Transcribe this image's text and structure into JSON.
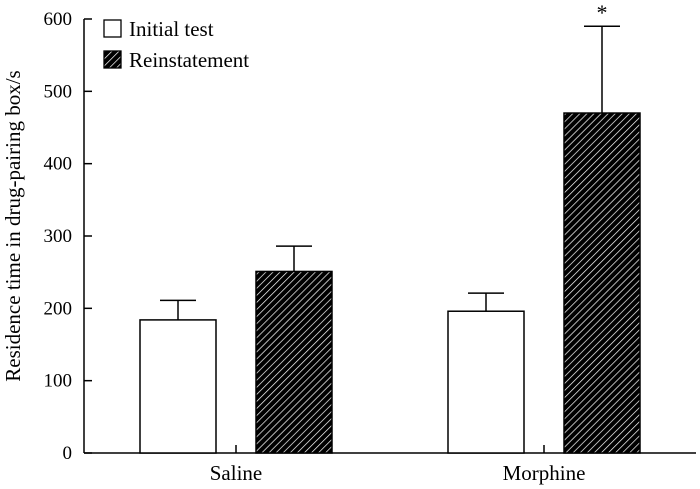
{
  "chart_data": {
    "type": "bar",
    "categories": [
      "Saline",
      "Morphine"
    ],
    "series": [
      {
        "name": "Initial test",
        "values": [
          184,
          196
        ],
        "errors": [
          27,
          25
        ],
        "fill": "none"
      },
      {
        "name": "Reinstatement",
        "values": [
          251,
          470
        ],
        "errors": [
          35,
          120
        ],
        "fill": "hatched"
      }
    ],
    "annotations": [
      {
        "category": "Morphine",
        "series": "Reinstatement",
        "text": "*"
      }
    ],
    "xlabel": "",
    "ylabel": "Residence time in drug-pairing box/s",
    "ylim": [
      0,
      600
    ],
    "yticks": [
      0,
      100,
      200,
      300,
      400,
      500,
      600
    ],
    "grid": false,
    "legend_position": "top-left"
  },
  "colors": {
    "axis": "#000000",
    "bar_fill": "#ffffff",
    "hatch": "#000000"
  }
}
